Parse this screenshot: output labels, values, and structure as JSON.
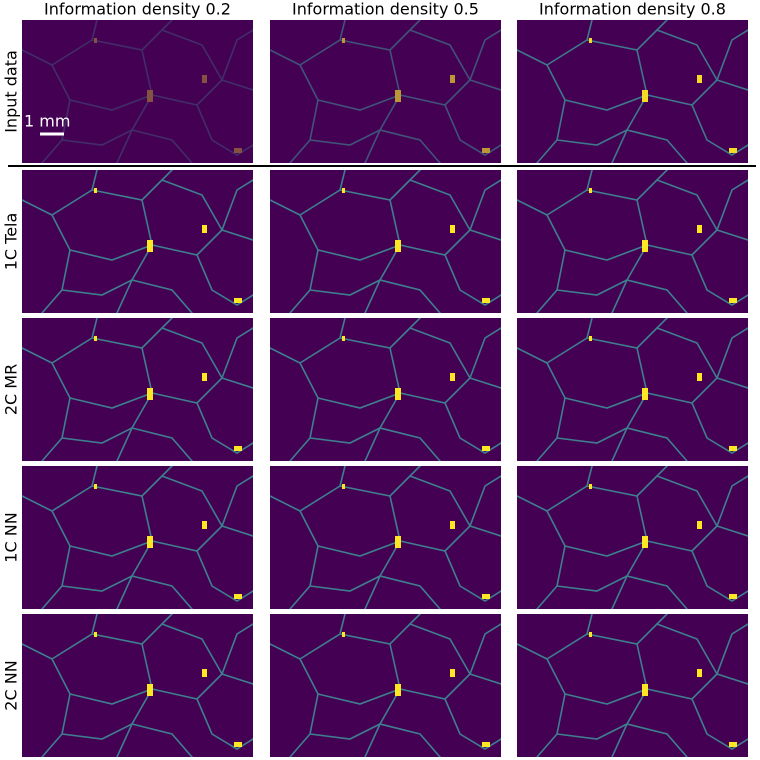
{
  "columns": [
    "Information density 0.2",
    "Information density 0.5",
    "Information density 0.8"
  ],
  "rows": [
    "Input data",
    "1C Tela",
    "2C MR",
    "1C NN",
    "2C NN"
  ],
  "scale_bar": "1 mm"
}
